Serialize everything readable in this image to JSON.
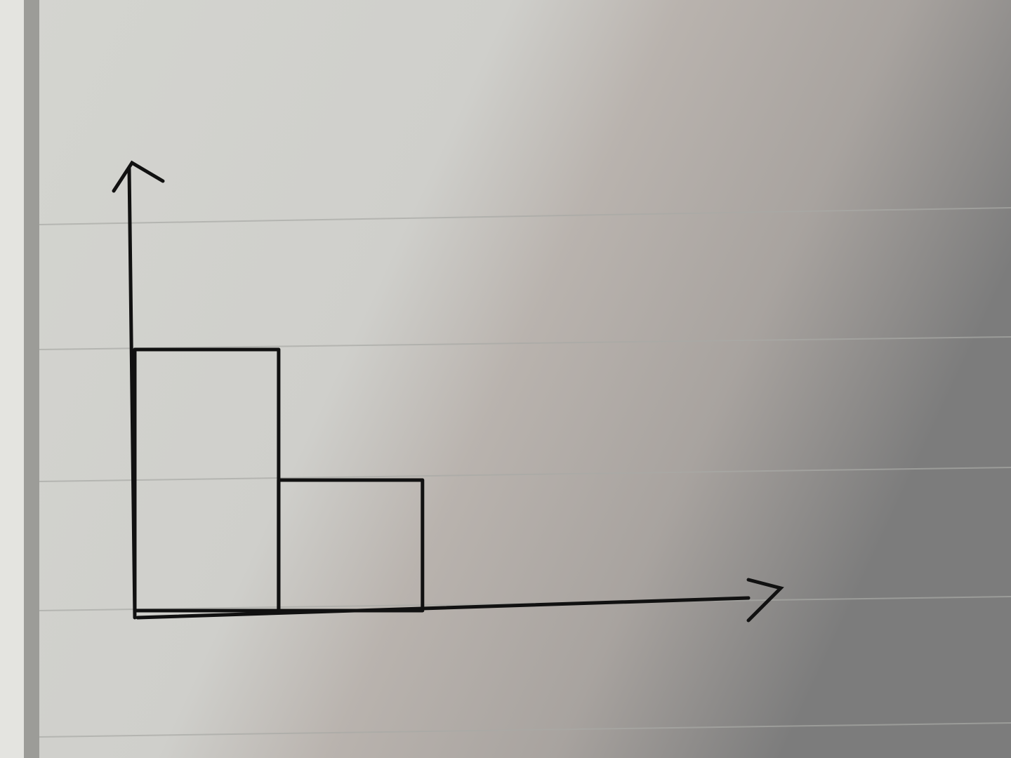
{
  "chart_data": {
    "type": "histogram",
    "bins": [
      0,
      1,
      2
    ],
    "values": [
      2,
      1
    ],
    "color": "#111111",
    "xlim": [
      0,
      4.5
    ],
    "ylim": [
      0,
      3.5
    ]
  }
}
